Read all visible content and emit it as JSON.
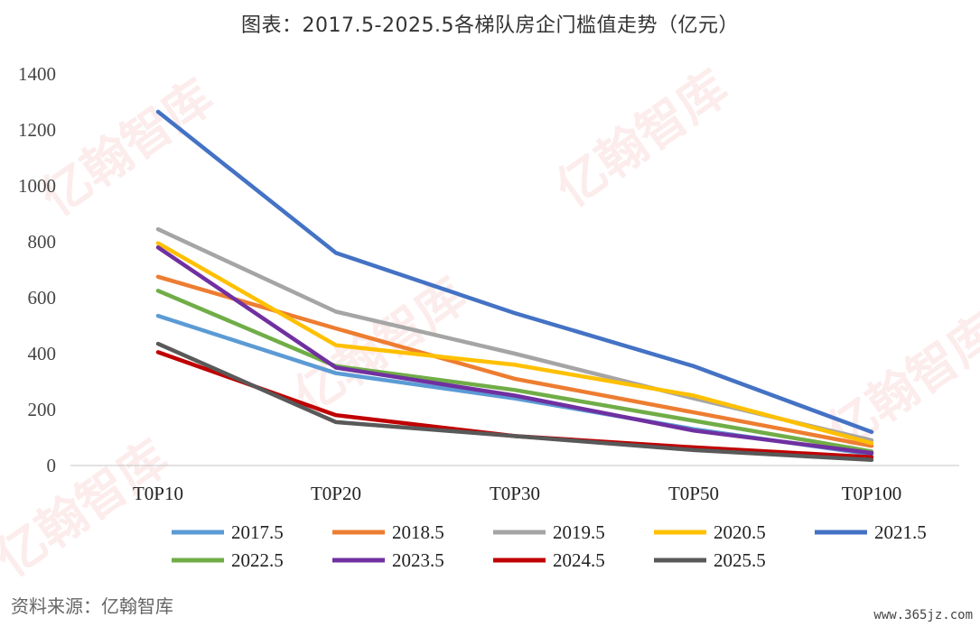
{
  "title": "图表：2017.5-2025.5各梯队房企门槛值走势（亿元）",
  "source": "资料来源：亿翰智库",
  "site": "www.365jz.com",
  "watermark": "亿翰智库",
  "chart_data": {
    "type": "line",
    "title": "图表：2017.5-2025.5各梯队房企门槛值走势（亿元）",
    "categories": [
      "T0P10",
      "T0P20",
      "T0P30",
      "T0P50",
      "T0P100"
    ],
    "ylim": [
      0,
      1400
    ],
    "yticks": [
      "0",
      "200",
      "400",
      "600",
      "800",
      "1000",
      "1200",
      "1400"
    ],
    "grid": false,
    "legend_position": "bottom",
    "series": [
      {
        "name": "2017.5",
        "color": "#5b9bd5",
        "values": [
          535,
          330,
          240,
          130,
          40
        ]
      },
      {
        "name": "2018.5",
        "color": "#ed7d31",
        "values": [
          675,
          490,
          310,
          190,
          70
        ]
      },
      {
        "name": "2019.5",
        "color": "#a5a5a5",
        "values": [
          845,
          550,
          400,
          240,
          90
        ]
      },
      {
        "name": "2020.5",
        "color": "#ffc000",
        "values": [
          795,
          430,
          360,
          250,
          80
        ]
      },
      {
        "name": "2021.5",
        "color": "#4472c4",
        "values": [
          1265,
          760,
          545,
          355,
          120
        ]
      },
      {
        "name": "2022.5",
        "color": "#70ad47",
        "values": [
          625,
          355,
          270,
          160,
          50
        ]
      },
      {
        "name": "2023.5",
        "color": "#7030a0",
        "values": [
          780,
          350,
          250,
          125,
          45
        ]
      },
      {
        "name": "2024.5",
        "color": "#c00000",
        "values": [
          405,
          180,
          105,
          65,
          30
        ]
      },
      {
        "name": "2025.5",
        "color": "#595959",
        "values": [
          435,
          155,
          105,
          55,
          20
        ]
      }
    ]
  }
}
